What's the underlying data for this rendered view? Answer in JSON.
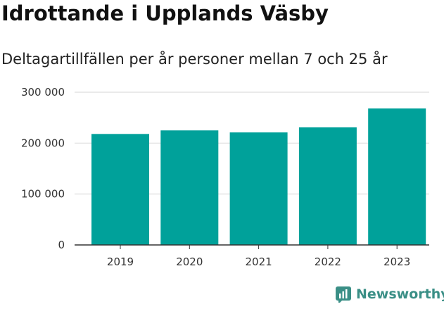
{
  "title": "Idrottande i Upplands Väsby",
  "subtitle": "Deltagartillfällen per år personer mellan 7 och 25 år",
  "brand": {
    "name": "Newsworthy",
    "icon": "newsworthy-logo-icon",
    "color": "#3a8f86"
  },
  "chart_data": {
    "type": "bar",
    "categories": [
      "2019",
      "2020",
      "2021",
      "2022",
      "2023"
    ],
    "values": [
      218000,
      225000,
      221000,
      231000,
      268000
    ],
    "ylim": [
      0,
      300000
    ],
    "yticks": [
      0,
      100000,
      200000,
      300000
    ],
    "ytick_labels": [
      "0",
      "100 000",
      "200 000",
      "300 000"
    ],
    "grid": true,
    "bar_color": "#00a19a",
    "xlabel": "",
    "ylabel": ""
  }
}
